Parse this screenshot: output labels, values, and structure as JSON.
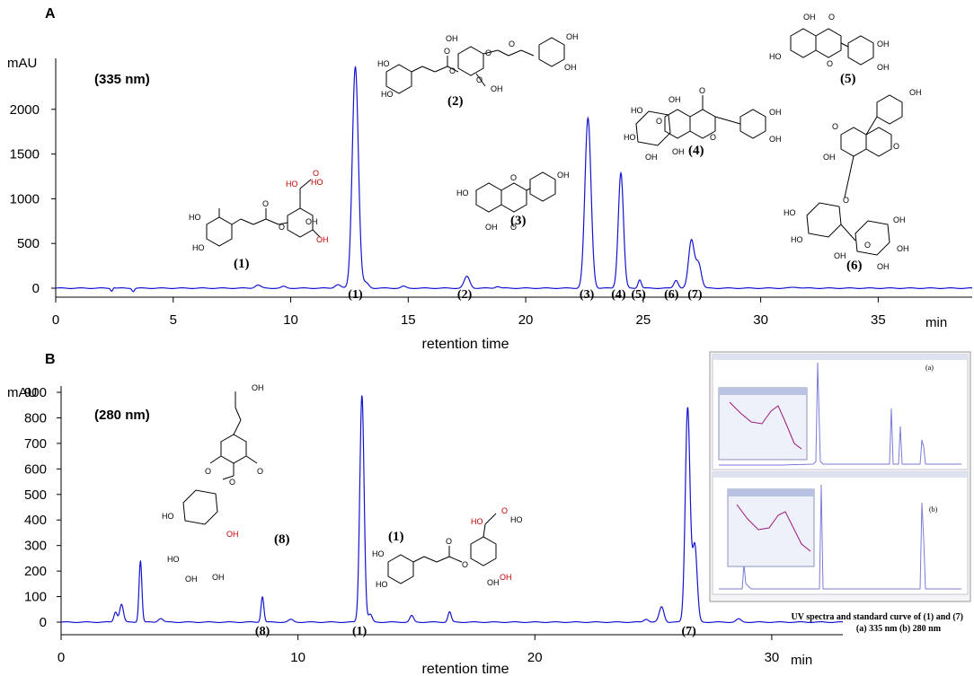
{
  "chart_data": [
    {
      "type": "line",
      "panel": "A",
      "wavelength": "(335 nm)",
      "ylabel": "mAU",
      "xlabel": "retention time",
      "xunit": "min",
      "xlim": [
        0,
        39
      ],
      "ylim": [
        -200,
        2500
      ],
      "x_ticks": [
        0,
        5,
        10,
        15,
        20,
        25,
        30,
        35
      ],
      "y_ticks": [
        0,
        500,
        1000,
        1500,
        2000
      ],
      "series": [
        {
          "color": "#1515d0",
          "peaks": [
            {
              "rt": 2.4,
              "height": -40,
              "width": 0.05
            },
            {
              "rt": 2.45,
              "height": 20,
              "width": 0.05
            },
            {
              "rt": 3.3,
              "height": -35,
              "width": 0.05
            },
            {
              "rt": 8.6,
              "height": 35,
              "width": 0.12
            },
            {
              "rt": 9.7,
              "height": 18,
              "width": 0.1
            },
            {
              "rt": 12.0,
              "height": 40,
              "width": 0.12
            },
            {
              "rt": 12.75,
              "height": 2480,
              "width": 0.13
            },
            {
              "rt": 13.2,
              "height": 60,
              "width": 0.12
            },
            {
              "rt": 14.8,
              "height": 20,
              "width": 0.1
            },
            {
              "rt": 17.5,
              "height": 130,
              "width": 0.12
            },
            {
              "rt": 18.8,
              "height": 20,
              "width": 0.1
            },
            {
              "rt": 22.65,
              "height": 1900,
              "width": 0.13
            },
            {
              "rt": 24.05,
              "height": 1290,
              "width": 0.11
            },
            {
              "rt": 24.85,
              "height": 95,
              "width": 0.07
            },
            {
              "rt": 26.4,
              "height": 90,
              "width": 0.09
            },
            {
              "rt": 27.05,
              "height": 530,
              "width": 0.12
            },
            {
              "rt": 27.35,
              "height": 280,
              "width": 0.12
            },
            {
              "rt": 31.5,
              "height": 10,
              "width": 0.2
            }
          ]
        }
      ],
      "peak_labels": [
        {
          "text": "(1)",
          "rt": 12.75
        },
        {
          "text": "(2)",
          "rt": 17.4
        },
        {
          "text": "(3)",
          "rt": 22.6
        },
        {
          "text": "(4)",
          "rt": 23.95
        },
        {
          "text": "(5)",
          "rt": 24.8
        },
        {
          "text": "(6)",
          "rt": 26.2
        },
        {
          "text": "(7)",
          "rt": 27.2
        }
      ],
      "compounds": [
        {
          "id": "c1",
          "label": "(1)",
          "atoms": [
            "HO",
            "HO",
            "O",
            "O",
            "HO",
            "OH",
            "O",
            "HO",
            "OH"
          ]
        },
        {
          "id": "c2",
          "label": "(2)",
          "atoms": [
            "HO",
            "HO",
            "O",
            "O",
            "OH",
            "O",
            "O",
            "OH",
            "OH",
            "OH",
            "O"
          ]
        },
        {
          "id": "c3",
          "label": "(3)",
          "atoms": [
            "HO",
            "O",
            "OH",
            "OH",
            "O"
          ]
        },
        {
          "id": "c4",
          "label": "(4)",
          "atoms": [
            "OH",
            "HO",
            "O",
            "OH",
            "O",
            "O",
            "OH",
            "OH",
            "OH",
            "HO"
          ]
        },
        {
          "id": "c5",
          "label": "(5)",
          "atoms": [
            "OH",
            "O",
            "HO",
            "O",
            "OH",
            "OH"
          ]
        },
        {
          "id": "c6",
          "label": "(6)",
          "atoms": [
            "OH",
            "O",
            "OH",
            "O",
            "HO",
            "OH",
            "O",
            "HO",
            "OH",
            "O",
            "OH",
            "OH"
          ]
        }
      ]
    },
    {
      "type": "line",
      "panel": "B",
      "wavelength": "(280 nm)",
      "ylabel": "mAU",
      "xlabel": "retention time",
      "xunit": "min",
      "xlim": [
        0,
        33
      ],
      "ylim": [
        -50,
        950
      ],
      "x_ticks": [
        0,
        10,
        20,
        30
      ],
      "y_ticks": [
        0,
        100,
        200,
        300,
        400,
        500,
        600,
        700,
        800,
        900
      ],
      "series": [
        {
          "color": "#1515d0",
          "peaks": [
            {
              "rt": 2.3,
              "height": 40,
              "width": 0.07
            },
            {
              "rt": 2.55,
              "height": 70,
              "width": 0.08
            },
            {
              "rt": 3.35,
              "height": 240,
              "width": 0.06
            },
            {
              "rt": 4.2,
              "height": 15,
              "width": 0.1
            },
            {
              "rt": 8.5,
              "height": 100,
              "width": 0.06
            },
            {
              "rt": 9.7,
              "height": 10,
              "width": 0.1
            },
            {
              "rt": 12.7,
              "height": 890,
              "width": 0.09
            },
            {
              "rt": 13.05,
              "height": 30,
              "width": 0.08
            },
            {
              "rt": 14.8,
              "height": 25,
              "width": 0.08
            },
            {
              "rt": 16.4,
              "height": 40,
              "width": 0.07
            },
            {
              "rt": 24.7,
              "height": 12,
              "width": 0.1
            },
            {
              "rt": 25.35,
              "height": 60,
              "width": 0.1
            },
            {
              "rt": 26.45,
              "height": 840,
              "width": 0.1
            },
            {
              "rt": 26.75,
              "height": 300,
              "width": 0.1
            },
            {
              "rt": 28.6,
              "height": 12,
              "width": 0.1
            }
          ]
        }
      ],
      "peak_labels": [
        {
          "text": "(8)",
          "rt": 8.5
        },
        {
          "text": "(1)",
          "rt": 12.6
        },
        {
          "text": "(7)",
          "rt": 26.5
        }
      ],
      "compounds": [
        {
          "id": "c8",
          "label": "(8)",
          "atoms": [
            "OH",
            "O",
            "O",
            "O",
            "HO",
            "OH",
            "HO",
            "OH",
            "OH"
          ]
        },
        {
          "id": "c1b",
          "label": "(1)",
          "atoms": [
            "HO",
            "HO",
            "O",
            "O",
            "HO",
            "OH",
            "O",
            "HO",
            "OH"
          ]
        }
      ],
      "inset": {
        "tag_a": "(a)",
        "tag_b": "(b)",
        "caption": [
          "UV spectra and standard curve of (1) and (7)",
          "(a) 335 nm  (b) 280 nm"
        ]
      }
    }
  ]
}
